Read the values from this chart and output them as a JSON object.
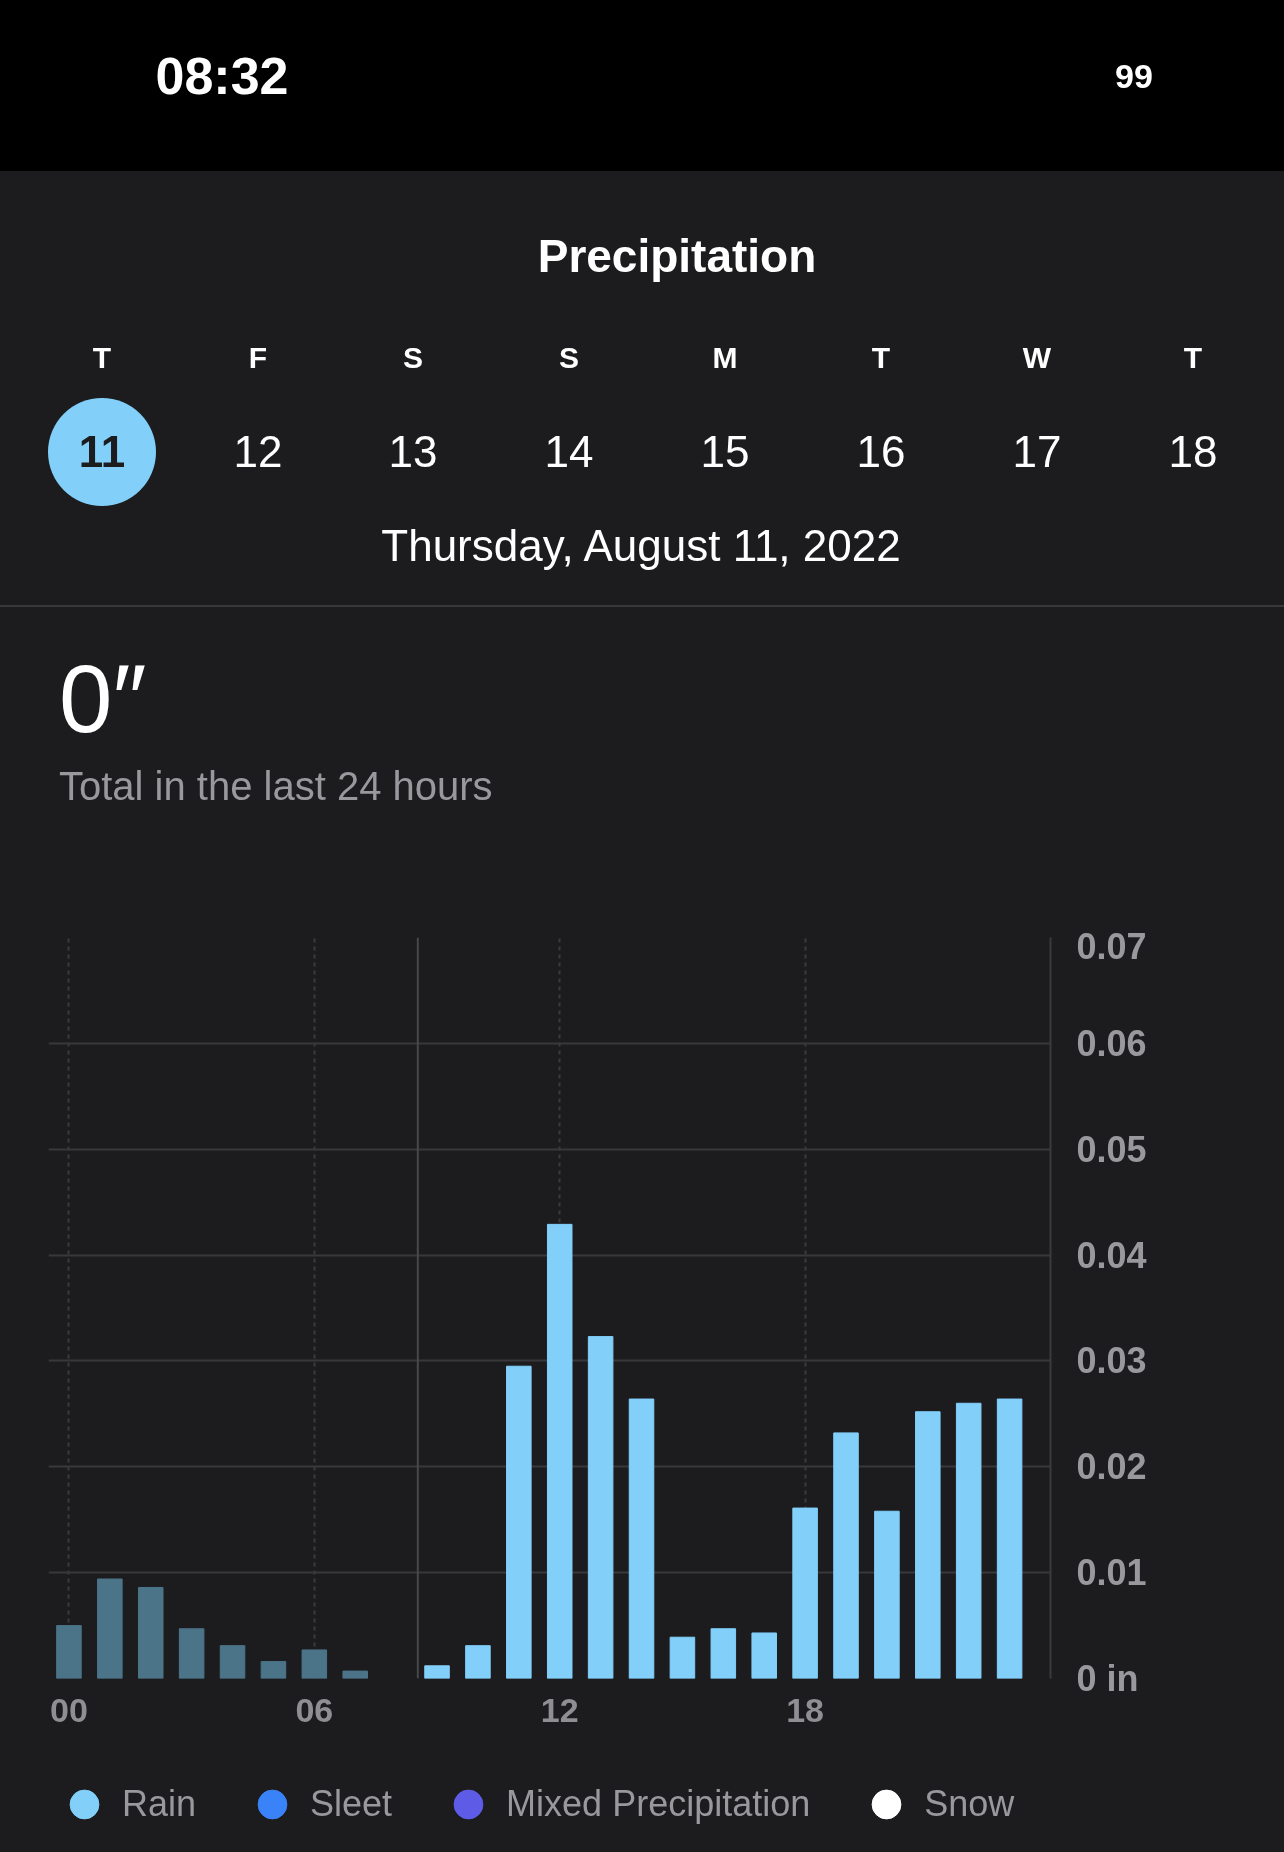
{
  "chart_data": {
    "type": "bar",
    "title": "Precipitation",
    "subtitle": "Thursday, August 11, 2022",
    "annotations": [
      "08:32",
      "99",
      "T",
      "F",
      "S",
      "S",
      "M",
      "T",
      "W",
      "T",
      "11",
      "12",
      "13",
      "14",
      "15",
      "16",
      "17",
      "18",
      "0″",
      "Total in the last 24 hours"
    ],
    "x": [
      0,
      1,
      2,
      3,
      4,
      5,
      6,
      7,
      8,
      9,
      10,
      11,
      12,
      13,
      14,
      15,
      16,
      17,
      18,
      19,
      20,
      21,
      22,
      23
    ],
    "series": [
      {
        "name": "Rain",
        "color": "#82cffa",
        "colors": [
          "#4b7489",
          "#4b7489",
          "#4b7489",
          "#4b7489",
          "#4b7489",
          "#4b7489",
          "#4b7489",
          "#4b7489",
          "#4b7489",
          "#82cffa",
          "#82cffa",
          "#82cffa",
          "#82cffa",
          "#82cffa",
          "#82cffa",
          "#82cffa",
          "#82cffa",
          "#82cffa",
          "#82cffa",
          "#82cffa",
          "#82cffa",
          "#82cffa",
          "#82cffa",
          "#82cffa"
        ],
        "values": [
          0.005,
          0.0094,
          0.0086,
          0.0047,
          0.0031,
          0.0016,
          0.0027,
          0.0007,
          null,
          0.0012,
          0.0031,
          0.0295,
          0.0429,
          0.0323,
          0.0264,
          0.0039,
          0.0047,
          0.0043,
          0.0161,
          0.0232,
          0.0158,
          0.0252,
          0.026,
          0.0264
        ]
      },
      {
        "name": "Sleet",
        "color": "#3a82f7",
        "values": [
          null,
          null,
          null,
          null,
          null,
          null,
          null,
          null,
          null,
          null,
          null,
          null,
          null,
          null,
          null,
          null,
          null,
          null,
          null,
          null,
          null,
          null,
          null,
          null
        ]
      },
      {
        "name": "Mixed Precipitation",
        "color": "#5e5ce6",
        "values": [
          null,
          null,
          null,
          null,
          null,
          null,
          null,
          null,
          null,
          null,
          null,
          null,
          null,
          null,
          null,
          null,
          null,
          null,
          null,
          null,
          null,
          null,
          null,
          null
        ]
      },
      {
        "name": "Snow",
        "color": "#ffffff",
        "values": [
          null,
          null,
          null,
          null,
          null,
          null,
          null,
          null,
          null,
          null,
          null,
          null,
          null,
          null,
          null,
          null,
          null,
          null,
          null,
          null,
          null,
          null,
          null,
          null
        ]
      }
    ],
    "xlim": [
      -0.5,
      24
    ],
    "xticks": [
      {
        "value": 0,
        "label": "00"
      },
      {
        "value": 6,
        "label": "06"
      },
      12,
      18
    ],
    "ylim": [
      0,
      0.07
    ],
    "yticks": [
      {
        "value": 0,
        "label": "0 in"
      },
      0.01,
      0.02,
      0.03,
      0.04,
      0.05,
      0.06,
      0.07
    ],
    "grid": true,
    "legend": "bottom",
    "ref_lines": [
      {
        "axis": "x",
        "value": 8.53,
        "color": "#48484a"
      }
    ]
  }
}
